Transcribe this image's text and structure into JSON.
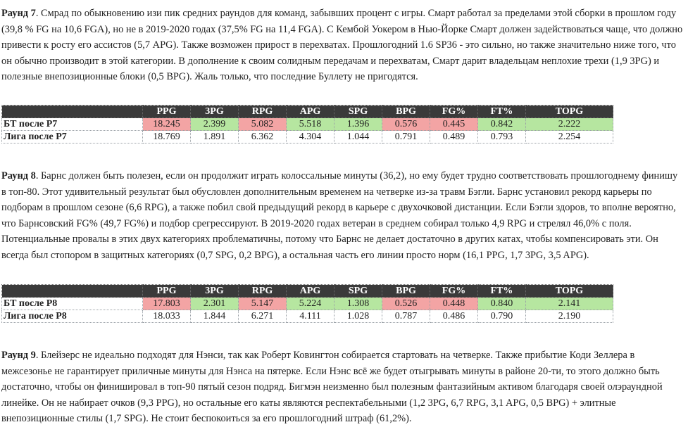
{
  "paragraphs": [
    {
      "label": "Раунд 7",
      "text": ". Смрад по обыкновению изи пик средних раундов для команд, забывших процент с игры. Смарт работал за пределами этой сборки в прошлом году (39,8 % FG на 10,6 FGA), но не в 2019-2020 годах (37,5% FG на 11,4 FGA). С Кембой Уокером в Нью-Йорке Смарт должен задействоваться чаще, что должно привести к росту его ассистов (5,7 APG). Также возможен прирост в перехватах. Прошлогодний 1.6 SP36 - это сильно, но также значительно ниже того, что он обычно производит в этой категории. В дополнение к своим солидным передачам и перехватам, Смарт дарит владельцам неплохие трехи (1,9 3PG) и полезные внепозиционные блоки (0,5 BPG). Жаль только, что последние Буллету не пригодятся."
    },
    {
      "label": "Раунд 8",
      "text": ". Барнс должен быть полезен, если он продолжит играть колоссальные минуты (36,2), но ему будет трудно соответствовать прошлогоднему финишу в топ-80. Этот удивительный результат был обусловлен дополнительным временем на четверке из-за травм Бэгли. Барнс установил рекорд карьеры по подборам в прошлом сезоне (6,6 RPG), а также побил свой предыдущий рекорд в карьере с двухочковой дистанции. Если Бэгли здоров, то вполне вероятно, что Барнсовский FG% (49,7 FG%) и подбор срегрессируют. В 2019-2020 годах ветеран в среднем собирал только 4,9 RPG и стрелял 46,0% с поля. Потенциальные провалы в этих двух категориях проблематичны, потому что Барнс не делает достаточно в других катах, чтобы компенсировать эти. Он всегда был стопором в защитных категориях (0,7 SPG, 0,2 BPG), а остальная часть его линии просто норм (16,1 PPG, 1,7 3PG, 3,5 APG)."
    },
    {
      "label": "Раунд 9",
      "text": ". Блейзерс не идеально подходят для Нэнси, так как Роберт Ковингтон собирается стартовать на четверке. Также прибытие Коди Зеллера в межсезонье не гарантирует приличные минуты для Нэнса на пятерке. Если Нэнс всё же будет отыгрывать минуты в районе 20-ти, то этого должно быть достаточно, чтобы он финишировал в топ-90 пятый сезон подряд. Бигмэн неизменно был полезным фантазийным активом благодаря своей олэраундной линейке. Он не набирает очков (9,3 PPG), но остальные его каты являются респектабельными (1,2 3PG, 6,7 RPG, 3,1 APG, 0,5 BPG) + элитные внепозиционные стилы (1,7 SPG). Не стоит беспокоиться за его прошлогодний штраф (61,2%)."
    }
  ],
  "tables": [
    {
      "headers": [
        "PPG",
        "3PG",
        "RPG",
        "APG",
        "SPG",
        "BPG",
        "FG%",
        "FT%",
        "TOPG"
      ],
      "rows": [
        {
          "label": "БТ после Р7",
          "values": [
            "18.245",
            "2.399",
            "5.082",
            "5.518",
            "1.396",
            "0.576",
            "0.445",
            "0.842",
            "2.222"
          ],
          "colors": [
            "red",
            "green",
            "red",
            "green",
            "green",
            "red",
            "red",
            "green",
            "green"
          ]
        },
        {
          "label": "Лига после Р7",
          "values": [
            "18.769",
            "1.891",
            "6.362",
            "4.304",
            "1.044",
            "0.791",
            "0.489",
            "0.793",
            "2.254"
          ],
          "colors": [
            "",
            "",
            "",
            "",
            "",
            "",
            "",
            "",
            ""
          ]
        }
      ]
    },
    {
      "headers": [
        "PPG",
        "3PG",
        "RPG",
        "APG",
        "SPG",
        "BPG",
        "FG%",
        "FT%",
        "TOPG"
      ],
      "rows": [
        {
          "label": "БТ после Р8",
          "values": [
            "17.803",
            "2.301",
            "5.147",
            "5.224",
            "1.308",
            "0.526",
            "0.448",
            "0.840",
            "2.141"
          ],
          "colors": [
            "red",
            "green",
            "red",
            "green",
            "green",
            "red",
            "red",
            "green",
            "green"
          ]
        },
        {
          "label": "Лига после Р8",
          "values": [
            "18.033",
            "1.844",
            "6.271",
            "4.111",
            "1.028",
            "0.787",
            "0.486",
            "0.790",
            "2.190"
          ],
          "colors": [
            "",
            "",
            "",
            "",
            "",
            "",
            "",
            "",
            ""
          ]
        }
      ]
    }
  ],
  "colors": {
    "red": "#f3a4a4",
    "green": "#b6e6a0",
    "header_bg": "#3a3a3a",
    "header_text": "#ffffff"
  }
}
